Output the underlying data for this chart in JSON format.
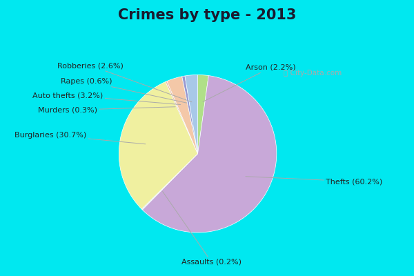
{
  "title": "Crimes by type - 2013",
  "ordered_labels": [
    "Arson",
    "Thefts",
    "Assaults",
    "Burglaries",
    "Murders",
    "Auto thefts",
    "Rapes",
    "Robberies"
  ],
  "ordered_values": [
    2.2,
    60.2,
    0.2,
    30.7,
    0.3,
    3.2,
    0.6,
    2.6
  ],
  "ordered_colors": [
    "#b0e088",
    "#c8a8d8",
    "#d8d8e8",
    "#f0f0a0",
    "#f0b8a0",
    "#f4c8a8",
    "#9898d0",
    "#a8c8e8"
  ],
  "ordered_display_labels": [
    "Arson (2.2%)",
    "Thefts (60.2%)",
    "Assaults (0.2%)",
    "Burglaries (30.7%)",
    "Murders (0.3%)",
    "Auto thefts (3.2%)",
    "Rapes (0.6%)",
    "Robberies (2.6%)"
  ],
  "background_outer": "#00e8f0",
  "background_inner": "#cceedd",
  "title_color": "#1a1a2e",
  "title_fontsize": 15,
  "label_fontsize": 8,
  "watermark": "City-Data.com",
  "label_text_positions": {
    "Arson (2.2%)": [
      0.42,
      0.88,
      "left"
    ],
    "Thefts (60.2%)": [
      1.28,
      -0.35,
      "left"
    ],
    "Assaults (0.2%)": [
      0.05,
      -1.22,
      "center"
    ],
    "Burglaries (30.7%)": [
      -1.3,
      0.15,
      "right"
    ],
    "Murders (0.3%)": [
      -1.18,
      0.42,
      "right"
    ],
    "Auto thefts (3.2%)": [
      -1.12,
      0.58,
      "right"
    ],
    "Rapes (0.6%)": [
      -1.02,
      0.73,
      "right"
    ],
    "Robberies (2.6%)": [
      -0.9,
      0.9,
      "right"
    ]
  }
}
